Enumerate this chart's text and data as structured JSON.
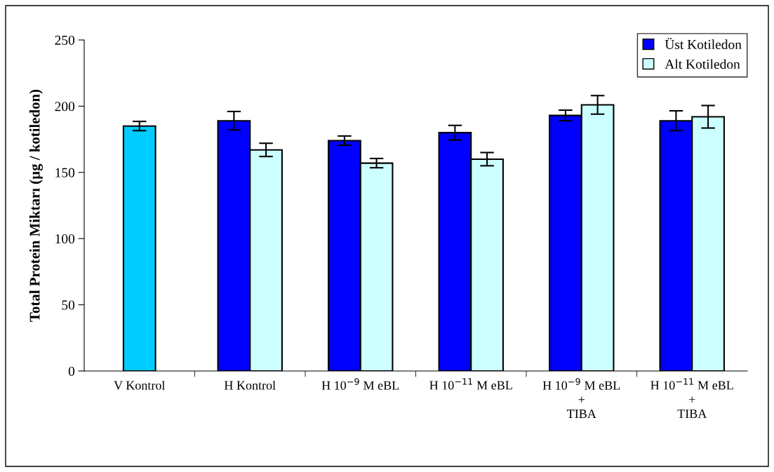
{
  "chart_data": {
    "type": "bar",
    "ylabel": "Total Protein Miktarı (µg / kotiledon)",
    "categories": [
      "V Kontrol",
      "H Kontrol",
      "H 10$^{−9}$ M eBL",
      "H 10$^{−11}$ M eBL",
      "H 10$^{−9}$ M eBL\n+\nTIBA",
      "H 10$^{−11}$ M eBL\n+\nTIBA"
    ],
    "series": [
      {
        "name": "Üst Kotiledon",
        "color": "#0000ff",
        "colors": [
          "#00ccff",
          "#0000ff",
          "#0000ff",
          "#0000ff",
          "#0000ff",
          "#0000ff"
        ],
        "values": [
          185,
          189,
          174,
          180,
          193,
          189
        ],
        "errors": [
          3.5,
          7,
          3.5,
          5.5,
          4,
          7.5
        ]
      },
      {
        "name": "Alt Kotiledon",
        "color": "#ccffff",
        "values": [
          null,
          167,
          157,
          160,
          201,
          192
        ],
        "errors": [
          null,
          5,
          3.5,
          5,
          7,
          8.5
        ]
      }
    ],
    "ylim": [
      0,
      250
    ],
    "yticks": [
      0,
      50,
      100,
      150,
      200,
      250
    ],
    "grid": false,
    "legend": "top right"
  }
}
